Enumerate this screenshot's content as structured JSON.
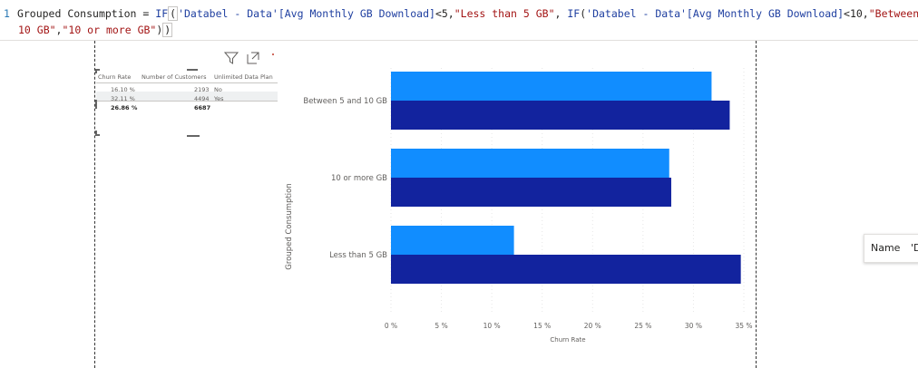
{
  "formula": {
    "line_number": "1",
    "line1": [
      {
        "t": "Grouped Consumption = ",
        "c": "plain"
      },
      {
        "t": "IF",
        "c": "kw"
      },
      {
        "t": "(",
        "c": "paren"
      },
      {
        "t": "'Databel - Data'[Avg Monthly GB Download]",
        "c": "kw"
      },
      {
        "t": "<5,",
        "c": "plain"
      },
      {
        "t": "\"Less than 5 GB\"",
        "c": "str"
      },
      {
        "t": ", ",
        "c": "plain"
      },
      {
        "t": "IF",
        "c": "kw"
      },
      {
        "t": "(",
        "c": "plain"
      },
      {
        "t": "'Databel - Data'[Avg Monthly GB Download]",
        "c": "kw"
      },
      {
        "t": "<10,",
        "c": "plain"
      },
      {
        "t": "\"Between 5 and",
        "c": "str"
      }
    ],
    "line2": [
      {
        "t": "10 GB\"",
        "c": "str"
      },
      {
        "t": ",",
        "c": "plain"
      },
      {
        "t": "\"10 or more GB\"",
        "c": "str"
      },
      {
        "t": ")",
        "c": "plain"
      },
      {
        "t": ")",
        "c": "paren"
      }
    ]
  },
  "table": {
    "headers": [
      "Churn Rate",
      "Number of Customers",
      "Unlimited Data Plan"
    ],
    "rows": [
      [
        "16.10 %",
        "2193",
        "No"
      ],
      [
        "32.11 %",
        "4494",
        "Yes"
      ]
    ],
    "total": [
      "26.86 %",
      "6687",
      ""
    ]
  },
  "toolbar": {
    "icons": [
      "filter-icon",
      "focus-mode-icon",
      "more-options-icon"
    ]
  },
  "chart_data": {
    "type": "bar",
    "orientation": "horizontal",
    "categories": [
      "Between 5 and 10 GB",
      "10 or more GB",
      "Less than 5 GB"
    ],
    "series": [
      {
        "color": "#118dff",
        "values": [
          31.8,
          27.6,
          12.2
        ]
      },
      {
        "color": "#12239e",
        "values": [
          33.6,
          27.8,
          34.7
        ]
      }
    ],
    "xlabel": "Churn Rate",
    "ylabel": "Grouped Consumption",
    "xlim": [
      0,
      35
    ],
    "xticks": [
      "0 %",
      "5 %",
      "10 %",
      "15 %",
      "20 %",
      "25 %",
      "30 %",
      "35 %"
    ],
    "grid": true
  },
  "tooltip": {
    "label": "Name",
    "value": "'D"
  }
}
